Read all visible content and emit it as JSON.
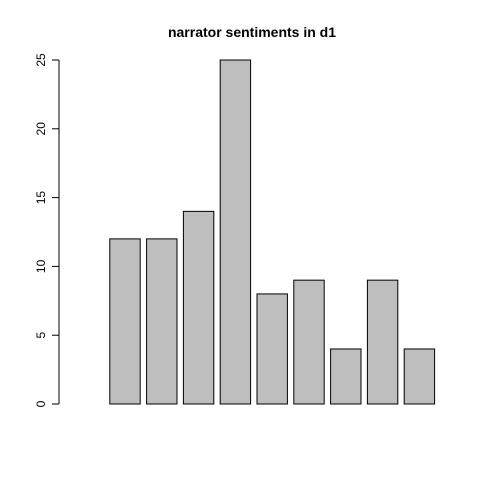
{
  "chart_data": {
    "type": "bar",
    "title": "narrator sentiments in d1",
    "xlabel": "",
    "ylabel": "",
    "categories": [
      "",
      "",
      "",
      "",
      "",
      "",
      "",
      "",
      "",
      ""
    ],
    "values": [
      0,
      12,
      12,
      14,
      25,
      8,
      9,
      4,
      9,
      4
    ],
    "ylim": [
      0,
      25
    ],
    "yticks": [
      0,
      5,
      10,
      15,
      20,
      25
    ],
    "grid": false,
    "colors": {
      "bar_fill": "#bebebe",
      "bar_stroke": "#000000",
      "background": "#ffffff"
    }
  }
}
